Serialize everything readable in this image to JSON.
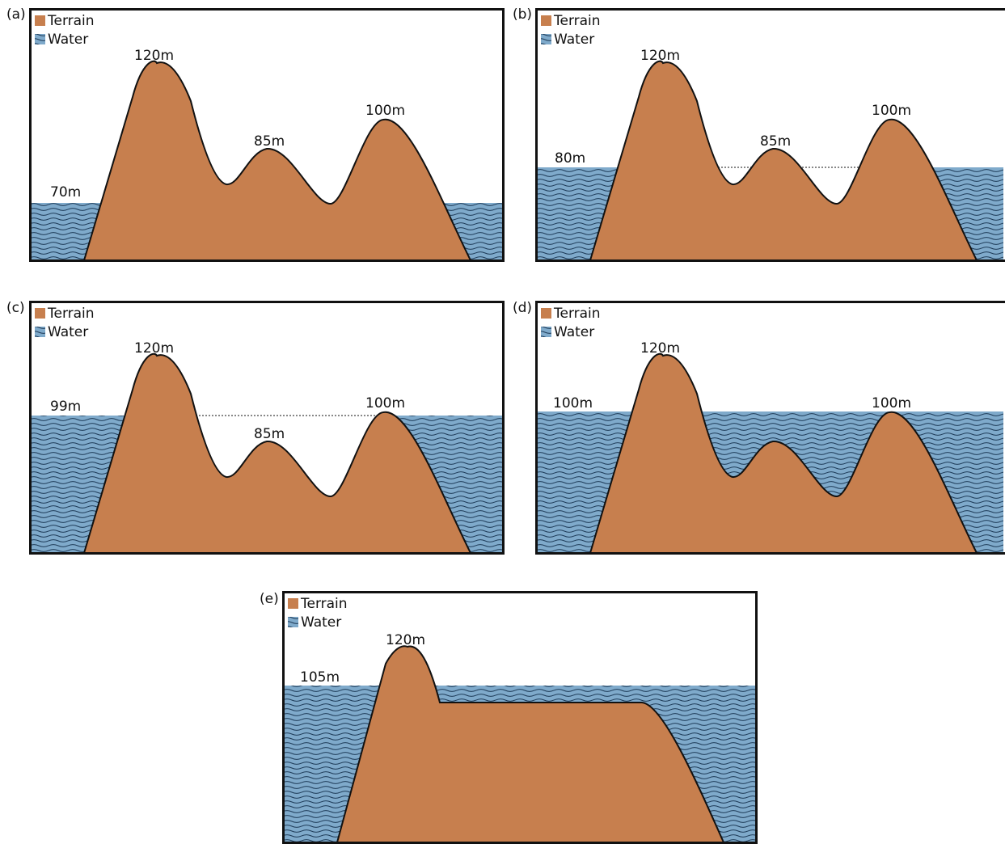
{
  "legend": {
    "terrain_label": "Terrain",
    "water_label": "Water"
  },
  "colors": {
    "terrain": "#C77F4E",
    "water": "#7FAACB",
    "wave": "#1E3B58",
    "frame": "#111111"
  },
  "panels": [
    {
      "letter": "(a)",
      "water_level_label": "70m",
      "peak_labels": [
        "120m",
        "85m",
        "100m"
      ]
    },
    {
      "letter": "(b)",
      "water_level_label": "80m",
      "peak_labels": [
        "120m",
        "85m",
        "100m"
      ]
    },
    {
      "letter": "(c)",
      "water_level_label": "99m",
      "peak_labels": [
        "120m",
        "85m",
        "100m"
      ]
    },
    {
      "letter": "(d)",
      "water_level_label": "100m",
      "peak_labels": [
        "120m",
        "100m"
      ]
    },
    {
      "letter": "(e)",
      "water_level_label": "105m",
      "peak_labels": [
        "120m"
      ]
    }
  ]
}
